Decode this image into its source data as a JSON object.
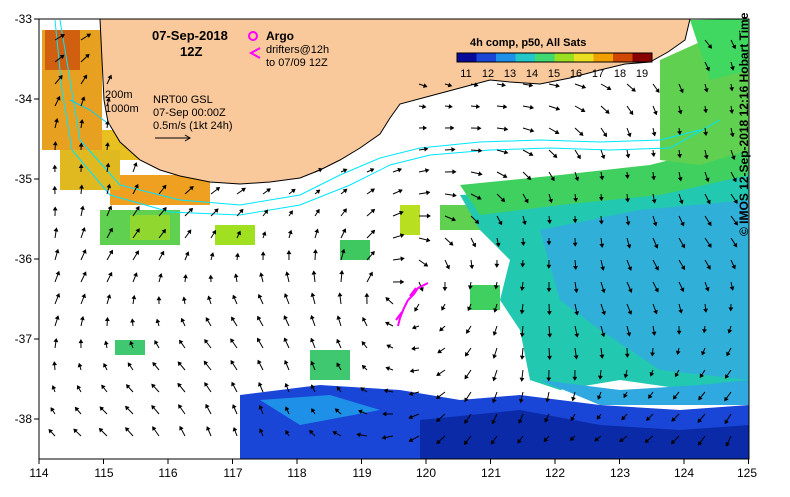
{
  "map": {
    "date": "07-Sep-2018",
    "time": "12Z",
    "argo_label": "Argo",
    "drifters_label_1": "drifters@12h",
    "drifters_label_2": "to 07/09 12Z",
    "colorbar_title": "4h comp, p50, All Sats",
    "colorbar_ticks": [
      "11",
      "12",
      "13",
      "14",
      "15",
      "16",
      "17",
      "18",
      "19"
    ],
    "isobath_200": "200m",
    "isobath_1000": "1000m",
    "current_source": "NRT00 GSL",
    "current_time": "07-Sep 00:00Z",
    "scale_label": "0.5m/s (1kt 24h)",
    "credit": "© IMOS 12-Sep-2018 12:16 Hobart Time",
    "x_ticks": [
      "114",
      "115",
      "116",
      "117",
      "118",
      "119",
      "120",
      "121",
      "122",
      "123",
      "124",
      "125"
    ],
    "y_ticks": [
      "-33",
      "-34",
      "-35",
      "-36",
      "-37",
      "-38"
    ]
  },
  "colors": {
    "land": "#f9c89b",
    "argo": "#ff00ff",
    "drifter": "#ff00ff",
    "isobath": "#00e5ff",
    "colormap": [
      "#0a0a9a",
      "#1a46d8",
      "#1e90e8",
      "#22c8c8",
      "#40d870",
      "#9ae020",
      "#e8e020",
      "#f0a000",
      "#d04800",
      "#8a0000"
    ]
  }
}
